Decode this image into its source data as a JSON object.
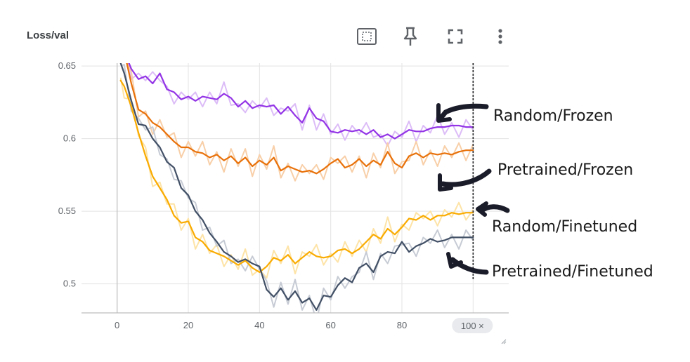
{
  "card": {
    "title": "Loss/val"
  },
  "toolbar": {
    "icons": [
      "fit-domain-icon",
      "pin-icon",
      "fullscreen-icon",
      "more-vert-icon"
    ]
  },
  "chart_data": {
    "type": "line",
    "title": "Loss/val",
    "xlabel": "",
    "ylabel": "",
    "xlim": [
      -10,
      110
    ],
    "ylim": [
      0.48,
      0.652
    ],
    "xticks": [
      0,
      20,
      40,
      60,
      80
    ],
    "yticks": [
      0.5,
      0.55,
      0.6,
      0.65
    ],
    "ytick_labels": [
      "0.5",
      "0.55",
      "0.6",
      "0.65"
    ],
    "xticks_labels": [
      "0",
      "20",
      "40",
      "60",
      "80"
    ],
    "grid": true,
    "hover_step_label": "100 ×",
    "hover_step": 100,
    "series": [
      {
        "name": "Random/Frozen",
        "color": "#9334e6",
        "raw_color": "#dcbcf7",
        "x": [
          2,
          4,
          6,
          8,
          10,
          12,
          14,
          16,
          18,
          20,
          22,
          24,
          26,
          28,
          30,
          32,
          34,
          36,
          38,
          40,
          42,
          44,
          46,
          48,
          50,
          52,
          54,
          56,
          58,
          60,
          62,
          64,
          66,
          68,
          70,
          72,
          74,
          76,
          78,
          80,
          82,
          84,
          86,
          88,
          90,
          92,
          94,
          96,
          98,
          100
        ],
        "y": [
          0.66,
          0.648,
          0.641,
          0.643,
          0.638,
          0.645,
          0.634,
          0.632,
          0.627,
          0.629,
          0.626,
          0.629,
          0.628,
          0.627,
          0.631,
          0.628,
          0.622,
          0.626,
          0.621,
          0.623,
          0.622,
          0.623,
          0.617,
          0.622,
          0.616,
          0.611,
          0.621,
          0.614,
          0.612,
          0.605,
          0.604,
          0.606,
          0.605,
          0.606,
          0.603,
          0.606,
          0.601,
          0.603,
          0.6,
          0.603,
          0.606,
          0.605,
          0.605,
          0.607,
          0.608,
          0.608,
          0.609,
          0.609,
          0.608,
          0.608
        ]
      },
      {
        "name": "Pretrained/Frozen",
        "color": "#e8710a",
        "raw_color": "#f8cfa8",
        "x": [
          2,
          4,
          6,
          8,
          10,
          12,
          14,
          16,
          18,
          20,
          22,
          24,
          26,
          28,
          30,
          32,
          34,
          36,
          38,
          40,
          42,
          44,
          46,
          48,
          50,
          52,
          54,
          56,
          58,
          60,
          62,
          64,
          66,
          68,
          70,
          72,
          74,
          76,
          78,
          80,
          82,
          84,
          86,
          88,
          90,
          92,
          94,
          96,
          98,
          100
        ],
        "y": [
          0.66,
          0.638,
          0.62,
          0.617,
          0.611,
          0.608,
          0.603,
          0.598,
          0.594,
          0.594,
          0.591,
          0.59,
          0.587,
          0.589,
          0.585,
          0.588,
          0.583,
          0.587,
          0.581,
          0.585,
          0.582,
          0.587,
          0.578,
          0.581,
          0.579,
          0.577,
          0.578,
          0.576,
          0.579,
          0.583,
          0.586,
          0.58,
          0.582,
          0.586,
          0.581,
          0.585,
          0.582,
          0.591,
          0.583,
          0.58,
          0.588,
          0.59,
          0.587,
          0.59,
          0.589,
          0.59,
          0.589,
          0.591,
          0.592,
          0.592
        ]
      },
      {
        "name": "Random/Finetuned",
        "color": "#f9ab00",
        "raw_color": "#fde3a6",
        "x": [
          1,
          2,
          4,
          6,
          8,
          10,
          12,
          14,
          16,
          18,
          20,
          22,
          24,
          26,
          28,
          30,
          32,
          34,
          36,
          38,
          40,
          42,
          44,
          46,
          48,
          50,
          52,
          54,
          56,
          58,
          60,
          62,
          64,
          66,
          68,
          70,
          72,
          74,
          76,
          78,
          80,
          82,
          84,
          86,
          88,
          90,
          92,
          94,
          96,
          98,
          100
        ],
        "y": [
          0.64,
          0.636,
          0.622,
          0.604,
          0.588,
          0.574,
          0.566,
          0.558,
          0.547,
          0.542,
          0.543,
          0.532,
          0.529,
          0.523,
          0.521,
          0.519,
          0.516,
          0.513,
          0.516,
          0.511,
          0.508,
          0.512,
          0.518,
          0.516,
          0.52,
          0.514,
          0.518,
          0.522,
          0.519,
          0.518,
          0.519,
          0.523,
          0.524,
          0.521,
          0.524,
          0.529,
          0.534,
          0.531,
          0.538,
          0.534,
          0.539,
          0.545,
          0.544,
          0.547,
          0.544,
          0.547,
          0.547,
          0.549,
          0.548,
          0.549,
          0.549
        ]
      },
      {
        "name": "Pretrained/Finetuned",
        "color": "#425066",
        "raw_color": "#c6cbd4",
        "x": [
          1,
          2,
          4,
          6,
          8,
          10,
          12,
          14,
          16,
          18,
          20,
          22,
          24,
          26,
          28,
          30,
          32,
          34,
          36,
          38,
          40,
          42,
          44,
          46,
          48,
          50,
          52,
          54,
          56,
          58,
          60,
          62,
          64,
          66,
          68,
          70,
          72,
          74,
          76,
          78,
          80,
          82,
          84,
          86,
          88,
          90,
          92,
          94,
          96,
          98,
          100
        ],
        "y": [
          0.652,
          0.645,
          0.626,
          0.61,
          0.609,
          0.6,
          0.594,
          0.584,
          0.58,
          0.566,
          0.561,
          0.55,
          0.544,
          0.535,
          0.529,
          0.522,
          0.519,
          0.515,
          0.517,
          0.514,
          0.512,
          0.496,
          0.491,
          0.497,
          0.489,
          0.495,
          0.487,
          0.49,
          0.482,
          0.492,
          0.491,
          0.499,
          0.504,
          0.501,
          0.511,
          0.514,
          0.508,
          0.519,
          0.522,
          0.521,
          0.529,
          0.522,
          0.526,
          0.528,
          0.531,
          0.529,
          0.53,
          0.532,
          0.532,
          0.532,
          0.532
        ]
      }
    ],
    "annotations": [
      {
        "text": "Random/Frozen",
        "series": "Random/Frozen"
      },
      {
        "text": "Pretrained/Frozen",
        "series": "Pretrained/Frozen"
      },
      {
        "text": "Random/Finetuned",
        "series": "Random/Finetuned"
      },
      {
        "text": "Pretrained/Finetuned",
        "series": "Pretrained/Finetuned"
      }
    ]
  }
}
